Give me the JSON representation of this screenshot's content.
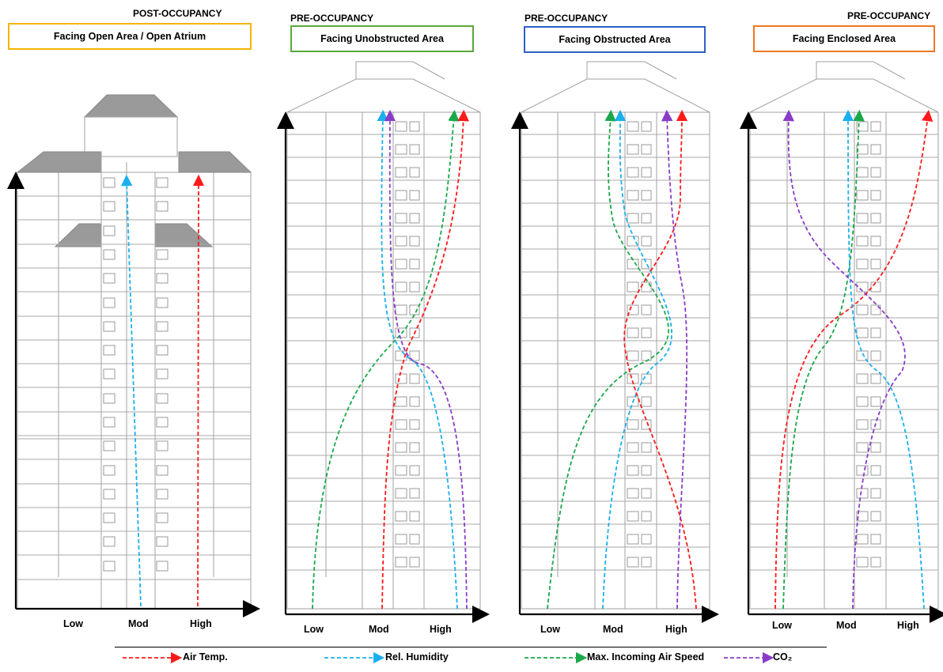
{
  "colors": {
    "air_temp": "#ff1a1a",
    "rel_humidity": "#1ab0ee",
    "air_speed": "#1aa84a",
    "co2": "#8a3cc8",
    "box_post": "#f5b400",
    "box_unobstructed": "#58a83a",
    "box_obstructed": "#2d5fc4",
    "box_enclosed": "#f07820"
  },
  "panels": [
    {
      "phase": "POST-OCCUPANCY",
      "title": "Facing Open Area / Open Atrium",
      "low": "Low",
      "mod": "Mod",
      "high": "High"
    },
    {
      "phase": "PRE-OCCUPANCY",
      "title": "Facing Unobstructed Area",
      "low": "Low",
      "mod": "Mod",
      "high": "High"
    },
    {
      "phase": "PRE-OCCUPANCY",
      "title": "Facing Obstructed Area",
      "low": "Low",
      "mod": "Mod",
      "high": "High"
    },
    {
      "phase": "PRE-OCCUPANCY",
      "title": "Facing Enclosed Area",
      "low": "Low",
      "mod": "Mod",
      "high": "High"
    }
  ],
  "legend": [
    {
      "label": "Air Temp.",
      "color_key": "air_temp"
    },
    {
      "label": "Rel. Humidity",
      "color_key": "rel_humidity"
    },
    {
      "label": "Max. Incoming Air Speed",
      "color_key": "air_speed"
    },
    {
      "label": "CO₂",
      "color_key": "co2"
    }
  ]
}
